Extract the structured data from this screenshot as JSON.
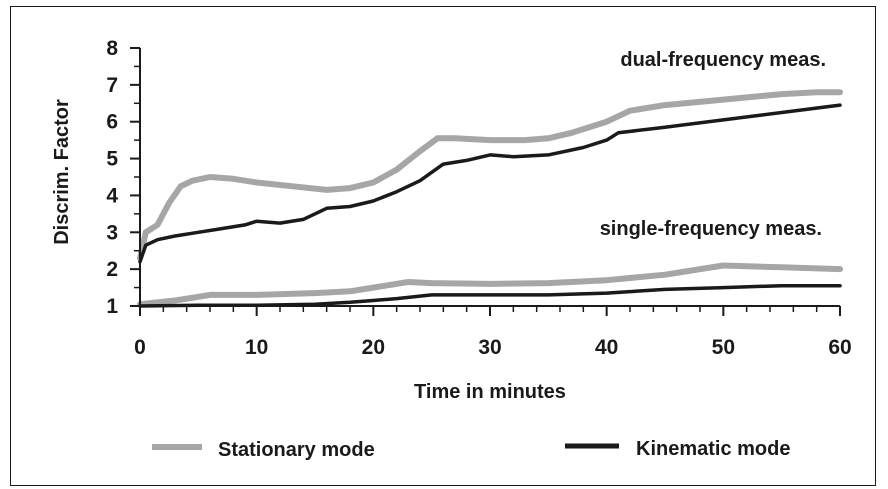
{
  "chart_data": {
    "type": "line",
    "xlabel": "Time in minutes",
    "ylabel": "Discrim. Factor",
    "xlim": [
      0,
      60
    ],
    "ylim": [
      1,
      8
    ],
    "xticks": [
      "0",
      "10",
      "20",
      "30",
      "40",
      "50",
      "60"
    ],
    "yticks": [
      "1",
      "2",
      "3",
      "4",
      "5",
      "6",
      "7",
      "8"
    ],
    "annotations": [
      "dual-frequency meas.",
      "single-frequency meas."
    ],
    "legend": {
      "placement": "bottom",
      "entries": [
        "Stationary mode",
        "Kinematic mode"
      ]
    },
    "colors": {
      "stationary": "#a6a6a6",
      "kinematic": "#1a1a1a",
      "axis": "#1a1a1a"
    },
    "series": [
      {
        "name": "Stationary mode",
        "group": "dual-frequency meas.",
        "x": [
          0,
          0.5,
          1.5,
          2.5,
          3.5,
          4.5,
          6,
          8,
          10,
          13,
          16,
          18,
          20,
          22,
          24,
          25.5,
          27,
          30,
          33,
          35,
          37,
          40,
          42,
          45,
          50,
          55,
          58,
          60
        ],
        "y": [
          2.3,
          3.0,
          3.2,
          3.8,
          4.25,
          4.4,
          4.5,
          4.45,
          4.35,
          4.25,
          4.15,
          4.2,
          4.35,
          4.7,
          5.2,
          5.55,
          5.55,
          5.5,
          5.5,
          5.55,
          5.7,
          6.0,
          6.3,
          6.45,
          6.6,
          6.75,
          6.8,
          6.8
        ]
      },
      {
        "name": "Kinematic mode",
        "group": "dual-frequency meas.",
        "x": [
          0,
          0.5,
          1.5,
          3,
          5,
          7,
          9,
          10,
          12,
          14,
          16,
          18,
          20,
          22,
          24,
          26,
          28,
          30,
          32,
          35,
          38,
          40,
          41,
          45,
          50,
          55,
          60
        ],
        "y": [
          2.2,
          2.65,
          2.8,
          2.9,
          3.0,
          3.1,
          3.2,
          3.3,
          3.25,
          3.35,
          3.65,
          3.7,
          3.85,
          4.1,
          4.4,
          4.85,
          4.95,
          5.1,
          5.05,
          5.1,
          5.3,
          5.5,
          5.7,
          5.85,
          6.05,
          6.25,
          6.45
        ]
      },
      {
        "name": "Stationary mode",
        "group": "single-frequency meas.",
        "x": [
          0,
          3,
          6,
          10,
          15,
          18,
          20,
          23,
          25,
          30,
          35,
          40,
          45,
          50,
          55,
          60
        ],
        "y": [
          1.05,
          1.15,
          1.3,
          1.3,
          1.35,
          1.4,
          1.5,
          1.65,
          1.62,
          1.6,
          1.62,
          1.7,
          1.85,
          2.1,
          2.05,
          2.0
        ]
      },
      {
        "name": "Kinematic mode",
        "group": "single-frequency meas.",
        "x": [
          0,
          5,
          10,
          15,
          18,
          20,
          22,
          25,
          30,
          35,
          40,
          45,
          50,
          55,
          60
        ],
        "y": [
          1.0,
          1.02,
          1.02,
          1.05,
          1.1,
          1.15,
          1.2,
          1.3,
          1.3,
          1.3,
          1.35,
          1.45,
          1.5,
          1.55,
          1.55
        ]
      }
    ]
  }
}
